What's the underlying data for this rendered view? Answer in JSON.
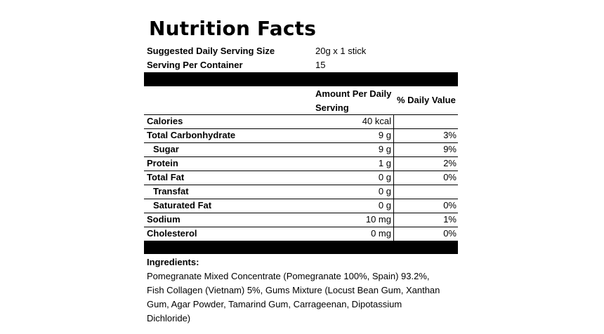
{
  "title": "Nutrition Facts",
  "serving": [
    {
      "label": "Suggested Daily Serving Size",
      "value": "20g x 1 stick"
    },
    {
      "label": "Serving Per Container",
      "value": "15"
    }
  ],
  "table": {
    "header": {
      "amount": "Amount Per Daily Serving",
      "daily_value": "% Daily Value"
    },
    "rows": [
      {
        "label": "Calories",
        "amount": "40 kcal"
      },
      {
        "label": "Total Carbonhydrate",
        "amount": "9 g",
        "daily_value": "3%"
      },
      {
        "label": "Sugar",
        "amount": "9 g",
        "daily_value": "9%"
      },
      {
        "label": "Protein",
        "amount": "1 g",
        "daily_value": "2%"
      },
      {
        "label": "Total Fat",
        "amount": "0 g",
        "daily_value": "0%"
      },
      {
        "label": "Transfat",
        "amount": "0 g"
      },
      {
        "label": "Saturated Fat",
        "amount": "0 g",
        "daily_value": "0%"
      },
      {
        "label": "Sodium",
        "amount": "10 mg",
        "daily_value": "1%"
      },
      {
        "label": "Cholesterol",
        "amount": "0 mg",
        "daily_value": "0%"
      }
    ]
  },
  "ingredients": {
    "heading": "Ingredients:",
    "lines": [
      "Pomegranate Mixed Concentrate (Pomegranate 100%, Spain) 93.2%,",
      "Fish Collagen (Vietnam) 5%, Gums Mixture (Locust Bean Gum, Xanthan",
      "Gum, Agar Powder, Tamarind Gum, Carrageenan, Dipotassium",
      "Dichloride)"
    ]
  }
}
